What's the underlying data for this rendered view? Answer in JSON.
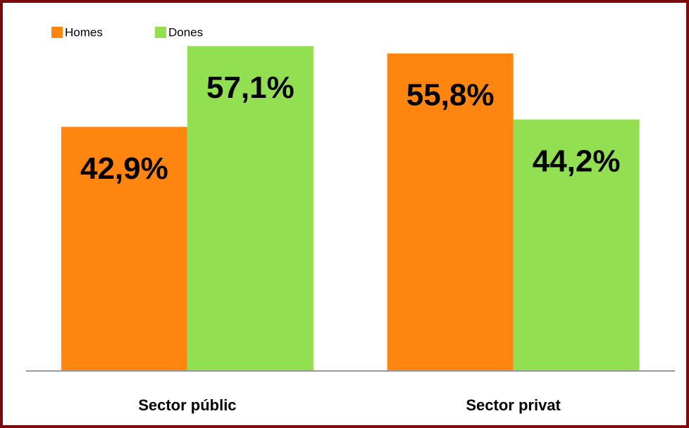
{
  "chart_data": {
    "type": "bar",
    "categories": [
      "Sector públic",
      "Sector privat"
    ],
    "series": [
      {
        "name": "Homes",
        "color": "#fd8510",
        "values": [
          42.9,
          55.8
        ],
        "value_labels": [
          "42,9%",
          "55,8%"
        ]
      },
      {
        "name": "Dones",
        "color": "#92e052",
        "values": [
          57.1,
          44.2
        ],
        "value_labels": [
          "57,1%",
          "44,2%"
        ]
      }
    ],
    "ylim": [
      0,
      60
    ],
    "legend": "top-left"
  }
}
